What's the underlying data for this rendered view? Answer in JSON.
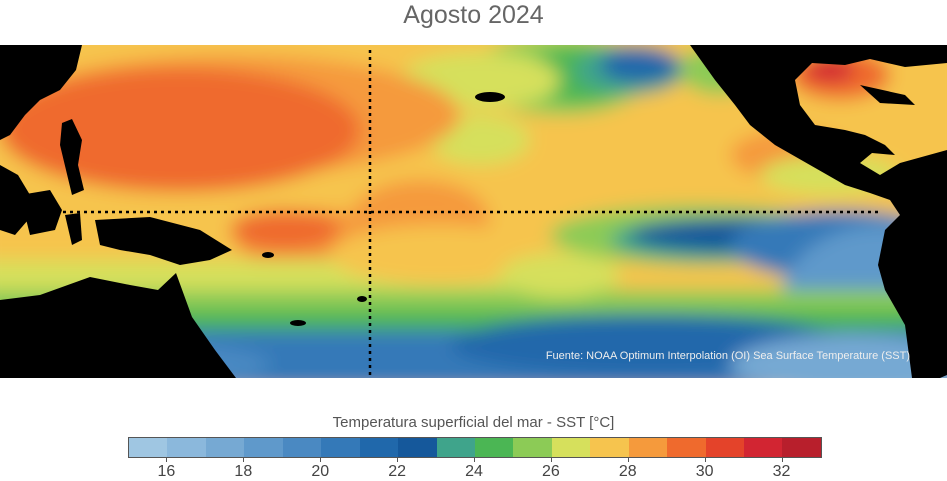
{
  "title": "Agosto 2024",
  "source_note": "Fuente: NOAA Optimum Interpolation (OI) Sea Surface Temperature (SST)",
  "legend": {
    "title": "Temperatura superficial del mar - SST  [°C]",
    "range": [
      15,
      33
    ],
    "bin_width": 1,
    "tick_values": [
      16,
      18,
      20,
      22,
      24,
      26,
      28,
      30,
      32
    ],
    "tick_labels": [
      "16",
      "18",
      "20",
      "22",
      "24",
      "26",
      "28",
      "30",
      "32"
    ],
    "colors": [
      "#9fc6e2",
      "#8bb8dc",
      "#76a9d3",
      "#5f99cb",
      "#4a89c2",
      "#3479b8",
      "#2068ab",
      "#15589b",
      "#3fa48b",
      "#4bb654",
      "#8ccb56",
      "#d6e05c",
      "#f6c44e",
      "#f59a3c",
      "#ef6a2d",
      "#e4432a",
      "#d22532",
      "#b81f2c"
    ]
  },
  "map": {
    "land_color": "#000000",
    "reference_lines": [
      "equator",
      "dateline"
    ]
  }
}
